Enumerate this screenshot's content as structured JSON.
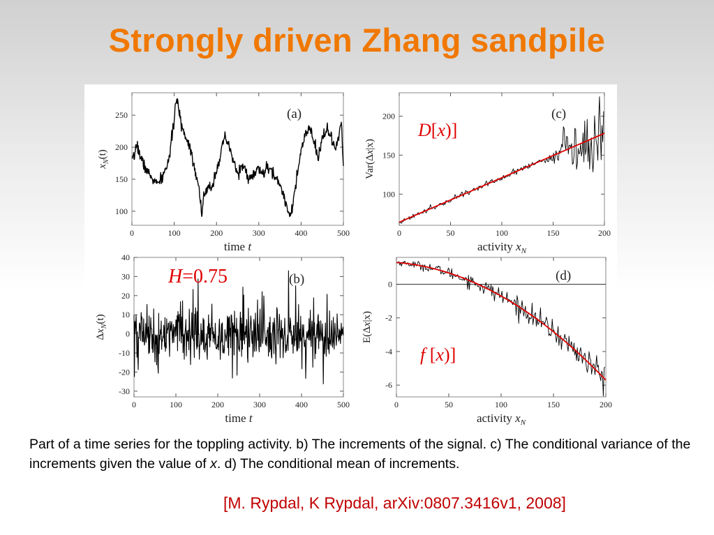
{
  "title": "Strongly driven Zhang sandpile",
  "caption": {
    "part1": "Part of a time series for the toppling activity. b) The increments of the signal. c) The conditional variance of the increments given the value of ",
    "var": "x",
    "part2": ". d) The conditional mean of increments."
  },
  "citation": "[M. Rypdal, K Rypdal, arXiv:0807.3416v1, 2008]",
  "colors": {
    "title": "#f07800",
    "citation": "#c00000",
    "fit": "#e00000",
    "trace": "#000000"
  },
  "chart_data": [
    {
      "panel": "(a)",
      "type": "line",
      "xlabel_text": "time",
      "xlabel_var": "t",
      "ylabel_var": "x",
      "ylabel_sub": "N",
      "ylabel_paren": "(t)",
      "xlim": [
        0,
        500
      ],
      "ylim": [
        78,
        285
      ],
      "xticks": [
        0,
        100,
        200,
        300,
        400,
        500
      ],
      "yticks": [
        100,
        150,
        200,
        250
      ],
      "keypoints_x": [
        0,
        5,
        10,
        15,
        20,
        30,
        40,
        50,
        60,
        70,
        80,
        90,
        100,
        105,
        110,
        120,
        130,
        140,
        150,
        160,
        165,
        170,
        180,
        190,
        200,
        210,
        220,
        230,
        240,
        250,
        260,
        270,
        280,
        290,
        300,
        310,
        320,
        330,
        340,
        350,
        360,
        370,
        375,
        380,
        390,
        400,
        410,
        420,
        430,
        440,
        450,
        460,
        470,
        480,
        490,
        495,
        500
      ],
      "keypoints_y": [
        178,
        182,
        205,
        198,
        185,
        170,
        158,
        150,
        142,
        150,
        165,
        190,
        245,
        275,
        260,
        228,
        212,
        195,
        162,
        132,
        95,
        122,
        135,
        140,
        165,
        190,
        215,
        200,
        178,
        158,
        172,
        160,
        150,
        160,
        165,
        158,
        168,
        162,
        152,
        142,
        122,
        100,
        95,
        110,
        150,
        195,
        218,
        230,
        210,
        180,
        215,
        230,
        215,
        198,
        215,
        240,
        170
      ]
    },
    {
      "panel": "(b)",
      "type": "line",
      "annotation_var": "H",
      "annotation_value": "=0.75",
      "xlabel_text": "time",
      "xlabel_var": "t",
      "ylabel_prefix": "Δ",
      "ylabel_var": "x",
      "ylabel_sub": "N",
      "ylabel_paren": "(t)",
      "xlim": [
        0,
        500
      ],
      "ylim": [
        -33,
        40
      ],
      "xticks": [
        0,
        100,
        200,
        300,
        400,
        500
      ],
      "yticks": [
        40,
        30,
        20,
        10,
        0,
        -10,
        -20,
        -30
      ],
      "pattern": "noisy increments fluctuating about 0, roughly within -30 to 38"
    },
    {
      "panel": "(c)",
      "type": "line",
      "annotation_var": "D",
      "annotation_arg": "x",
      "xlabel_text": "activity",
      "xlabel_var": "x",
      "xlabel_sub": "N",
      "ylabel_pre": "Var(Δ",
      "ylabel_mid": "x",
      "ylabel_bar": "|",
      "ylabel_end": "x)",
      "xlim": [
        0,
        200
      ],
      "ylim": [
        60,
        230
      ],
      "xticks": [
        0,
        50,
        100,
        150,
        200
      ],
      "yticks": [
        100,
        150,
        200
      ],
      "fit_x": [
        0,
        200
      ],
      "fit_y": [
        64,
        178
      ],
      "pattern": "noisy estimate hugging the linear fit, scatter growing for activity above 140, peak near 225 at 195"
    },
    {
      "panel": "(d)",
      "type": "line",
      "annotation_var": "f",
      "annotation_arg": "x",
      "xlabel_text": "activity",
      "xlabel_var": "x",
      "xlabel_sub": "N",
      "ylabel_pre": "E(Δ",
      "ylabel_mid": "x",
      "ylabel_bar": "|",
      "ylabel_end": "x)",
      "xlim": [
        0,
        200
      ],
      "ylim": [
        -6.7,
        1.6
      ],
      "xticks": [
        0,
        50,
        100,
        150,
        200
      ],
      "yticks": [
        0,
        -2,
        -4,
        -6
      ],
      "zero_line": 0,
      "fit_x": [
        0,
        200
      ],
      "fit_y": [
        1.3,
        -5.7
      ],
      "pattern": "noisy estimate along a downward-curving fit, crossing zero near activity 85"
    }
  ]
}
